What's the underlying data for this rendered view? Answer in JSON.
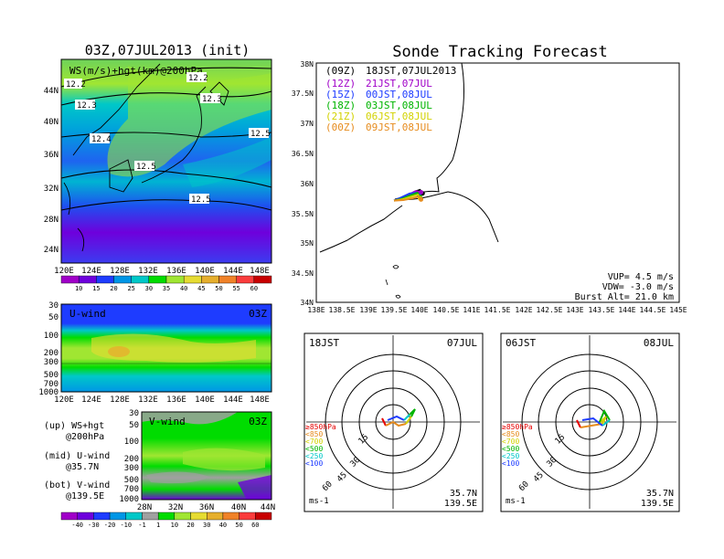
{
  "left_title": "03Z,07JUL2013 (init)",
  "right_title": "Sonde Tracking Forecast",
  "map_panel": {
    "label": "WS(m/s)+hgt(km)@200hPa",
    "x_ticks": [
      "120E",
      "124E",
      "128E",
      "132E",
      "136E",
      "140E",
      "144E",
      "148E"
    ],
    "y_ticks": [
      "24N",
      "28N",
      "32N",
      "36N",
      "40N",
      "44N"
    ],
    "contour_labels": [
      "12.2",
      "12.2",
      "12.3",
      "12.3",
      "12.4",
      "12.5",
      "12.5",
      "12.5"
    ],
    "colorbar": [
      "10",
      "15",
      "20",
      "25",
      "30",
      "35",
      "40",
      "45",
      "50",
      "55",
      "60"
    ],
    "colorbar_colors": [
      "#a000c8",
      "#6e00dc",
      "#1e3cff",
      "#0096e6",
      "#00c8c8",
      "#00dc00",
      "#a0e632",
      "#e6dc32",
      "#e6af2d",
      "#f08228",
      "#fa3c3c",
      "#c80000"
    ]
  },
  "u_panel": {
    "label": "U-wind",
    "time": "03Z",
    "y_ticks": [
      "30",
      "50",
      "100",
      "200",
      "300",
      "500",
      "700",
      "1000"
    ],
    "x_ticks": [
      "120E",
      "124E",
      "128E",
      "132E",
      "136E",
      "140E",
      "144E",
      "148E"
    ]
  },
  "v_panel": {
    "label": "V-wind",
    "time": "03Z",
    "y_ticks": [
      "30",
      "50",
      "100",
      "200",
      "300",
      "500",
      "700",
      "1000"
    ],
    "x_ticks": [
      "28N",
      "32N",
      "36N",
      "40N",
      "44N"
    ]
  },
  "legend_text": {
    "up": "(up) WS+hgt",
    "up2": "@200hPa",
    "mid": "(mid) U-wind",
    "mid2": "@35.7N",
    "bot": "(bot) V-wind",
    "bot2": "@139.5E"
  },
  "v_colorbar": {
    "labels": [
      "-40",
      "-30",
      "-20",
      "-10",
      "-1",
      "1",
      "10",
      "20",
      "30",
      "40",
      "50",
      "60"
    ],
    "colors": [
      "#a000c8",
      "#6e00dc",
      "#1e3cff",
      "#0096e6",
      "#00c8c8",
      "#a0a0a0",
      "#00dc00",
      "#a0e632",
      "#e6dc32",
      "#e6af2d",
      "#f08228",
      "#fa3c3c",
      "#c80000"
    ]
  },
  "track_map": {
    "x_ticks": [
      "138E",
      "138.5E",
      "139E",
      "139.5E",
      "140E",
      "140.5E",
      "141E",
      "141.5E",
      "142E",
      "142.5E",
      "143E",
      "143.5E",
      "144E",
      "144.5E",
      "145E"
    ],
    "y_ticks": [
      "34N",
      "34.5N",
      "35N",
      "35.5N",
      "36N",
      "36.5N",
      "37N",
      "37.5N",
      "38N"
    ],
    "legend": [
      {
        "run": "(09Z)",
        "time": "18JST,07JUL2013",
        "color": "#000000"
      },
      {
        "run": "(12Z)",
        "time": "21JST,07JUL",
        "color": "#a000c8"
      },
      {
        "run": "(15Z)",
        "time": "00JST,08JUL",
        "color": "#1e3cff"
      },
      {
        "run": "(18Z)",
        "time": "03JST,08JUL",
        "color": "#00b400"
      },
      {
        "run": "(21Z)",
        "time": "06JST,08JUL",
        "color": "#d2d200"
      },
      {
        "run": "(00Z)",
        "time": "09JST,08JUL",
        "color": "#e68c1e"
      }
    ],
    "vup": "VUP= 4.5 m/s",
    "vdw": "VDW= -3.0 m/s",
    "burst": "Burst Alt= 21.0 km"
  },
  "hodo1": {
    "time": "18JST",
    "date": "07JUL",
    "rings": [
      "15",
      "30",
      "45",
      "60"
    ],
    "levels": [
      "≥850hPa",
      "<850",
      "<700",
      "<500",
      "<250",
      "<100"
    ],
    "level_colors": [
      "#e60000",
      "#e68c1e",
      "#d2d200",
      "#00b400",
      "#00c8c8",
      "#1e3cff"
    ],
    "lat": "35.7N",
    "lon": "139.5E",
    "unit": "ms-1"
  },
  "hodo2": {
    "time": "06JST",
    "date": "08JUL",
    "rings": [
      "15",
      "30",
      "45",
      "60"
    ],
    "levels": [
      "≥850hPa",
      "<850",
      "<700",
      "<500",
      "<250",
      "<100"
    ],
    "level_colors": [
      "#e60000",
      "#e68c1e",
      "#d2d200",
      "#00b400",
      "#00c8c8",
      "#1e3cff"
    ],
    "lat": "35.7N",
    "lon": "139.5E",
    "unit": "ms-1"
  },
  "chart_data": [
    {
      "type": "heatmap",
      "title": "WS(m/s)+hgt(km)@200hPa",
      "x_axis": [
        "120E",
        "124E",
        "128E",
        "132E",
        "136E",
        "140E",
        "144E",
        "148E"
      ],
      "y_axis": [
        "24N",
        "28N",
        "32N",
        "36N",
        "40N",
        "44N"
      ],
      "colorbar_levels": [
        10,
        15,
        20,
        25,
        30,
        35,
        40,
        45,
        50,
        55,
        60
      ],
      "contour_labels_km": [
        12.2,
        12.2,
        12.3,
        12.3,
        12.4,
        12.5,
        12.5,
        12.5
      ]
    },
    {
      "type": "heatmap",
      "title": "U-wind",
      "x_axis": [
        "120E",
        "124E",
        "128E",
        "132E",
        "136E",
        "140E",
        "144E",
        "148E"
      ],
      "y_axis_hPa": [
        30,
        50,
        100,
        200,
        300,
        500,
        700,
        1000
      ]
    },
    {
      "type": "heatmap",
      "title": "V-wind",
      "x_axis": [
        "28N",
        "32N",
        "36N",
        "40N",
        "44N"
      ],
      "y_axis_hPa": [
        30,
        50,
        100,
        200,
        300,
        500,
        700,
        1000
      ],
      "colorbar_levels": [
        -40,
        -30,
        -20,
        -10,
        -1,
        1,
        10,
        20,
        30,
        40,
        50,
        60
      ]
    },
    {
      "type": "scatter",
      "title": "Sonde Tracking Forecast",
      "xlim": [
        138,
        145
      ],
      "ylim": [
        34,
        38
      ],
      "series": [
        {
          "name": "(09Z) 18JST,07JUL2013",
          "x": [
            139.5,
            139.6,
            139.75,
            139.9,
            140.0,
            140.05
          ],
          "y": [
            35.7,
            35.72,
            35.78,
            35.85,
            35.88,
            35.82
          ]
        },
        {
          "name": "(12Z) 21JST,07JUL",
          "x": [
            139.5,
            139.62,
            139.78,
            139.92,
            140.02
          ],
          "y": [
            35.7,
            35.74,
            35.8,
            35.86,
            35.84
          ]
        },
        {
          "name": "(15Z) 00JST,08JUL",
          "x": [
            139.5,
            139.63,
            139.8,
            139.93,
            139.98
          ],
          "y": [
            35.7,
            35.75,
            35.82,
            35.83,
            35.78
          ]
        },
        {
          "name": "(18Z) 03JST,08JUL",
          "x": [
            139.5,
            139.65,
            139.82,
            139.95,
            140.0
          ],
          "y": [
            35.7,
            35.73,
            35.79,
            35.83,
            35.76
          ]
        },
        {
          "name": "(21Z) 06JST,08JUL",
          "x": [
            139.5,
            139.66,
            139.84,
            139.96,
            140.0
          ],
          "y": [
            35.7,
            35.72,
            35.77,
            35.8,
            35.74
          ]
        },
        {
          "name": "(00Z) 09JST,08JUL",
          "x": [
            139.5,
            139.68,
            139.86,
            139.98,
            140.02
          ],
          "y": [
            35.7,
            35.71,
            35.74,
            35.77,
            35.72
          ]
        }
      ]
    }
  ]
}
